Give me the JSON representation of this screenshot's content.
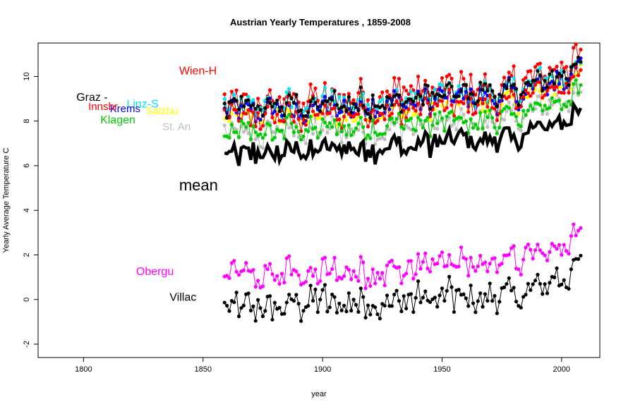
{
  "chart_data": {
    "type": "line",
    "title": "Austrian Yearly Temperatures , 1859-2008",
    "xlabel": "year",
    "ylabel": "Yearly Average Temperature C",
    "xlim": [
      1781,
      2016
    ],
    "ylim": [
      -2.6,
      11.5
    ],
    "x_ticks": [
      1800,
      1850,
      1900,
      1950,
      2000
    ],
    "y_ticks": [
      -2,
      0,
      2,
      4,
      6,
      8,
      10
    ],
    "x_tick_labels": [
      "1800",
      "1850",
      "1900",
      "1950",
      "2000"
    ],
    "y_tick_labels": [
      "-2",
      "0",
      "2",
      "4",
      "6",
      "8",
      "10"
    ],
    "grid": false,
    "x_start_year": 1859,
    "x_end_year": 2008,
    "series": [
      {
        "name": "Wien-H",
        "color": "#ff0000",
        "base": 8.7,
        "trend": 0.012,
        "amp": 0.75,
        "label": {
          "x": 1840,
          "y": 10.1,
          "size": 16
        }
      },
      {
        "name": "St. An",
        "color": "#bebebe",
        "base": 7.3,
        "trend": 0.01,
        "amp": 0.6,
        "label": {
          "x": 1833,
          "y": 7.6,
          "size": 15
        }
      },
      {
        "name": "Salzbu",
        "color": "#ffff00",
        "base": 8.1,
        "trend": 0.01,
        "amp": 0.6,
        "label": {
          "x": 1826,
          "y": 8.3,
          "size": 15
        }
      },
      {
        "name": "Linz-S",
        "color": "#00e5ee",
        "base": 8.5,
        "trend": 0.011,
        "amp": 0.65,
        "label": {
          "x": 1818,
          "y": 8.6,
          "size": 16
        }
      },
      {
        "name": "Krems",
        "color": "#0000ff",
        "base": 8.3,
        "trend": 0.011,
        "amp": 0.6,
        "label": {
          "x": 1811,
          "y": 8.4,
          "size": 15
        }
      },
      {
        "name": "Innsbr",
        "color": "#ff0000",
        "base": 8.0,
        "trend": 0.011,
        "amp": 0.6,
        "label": {
          "x": 1802,
          "y": 8.5,
          "size": 15
        }
      },
      {
        "name": "Klagen",
        "color": "#00cd00",
        "base": 7.4,
        "trend": 0.01,
        "amp": 0.6,
        "label": {
          "x": 1807,
          "y": 7.9,
          "size": 16
        }
      },
      {
        "name": "Graz -",
        "color": "#000000",
        "base": 8.5,
        "trend": 0.011,
        "amp": 0.6,
        "label": {
          "x": 1797,
          "y": 8.9,
          "size": 16
        }
      },
      {
        "name": "mean",
        "color": "#000000",
        "base": 6.4,
        "trend": 0.011,
        "amp": 0.6,
        "width": 4.5,
        "label": {
          "x": 1840,
          "y": 4.9,
          "size": 22
        }
      },
      {
        "name": "Obergu",
        "color": "#ff00ff",
        "base": 1.0,
        "trend": 0.009,
        "amp": 0.7,
        "label": {
          "x": 1822,
          "y": 1.1,
          "size": 16
        }
      },
      {
        "name": "Villac",
        "color": "#000000",
        "base": -0.4,
        "trend": 0.008,
        "amp": 0.75,
        "label": {
          "x": 1836,
          "y": -0.05,
          "size": 16
        }
      }
    ]
  }
}
